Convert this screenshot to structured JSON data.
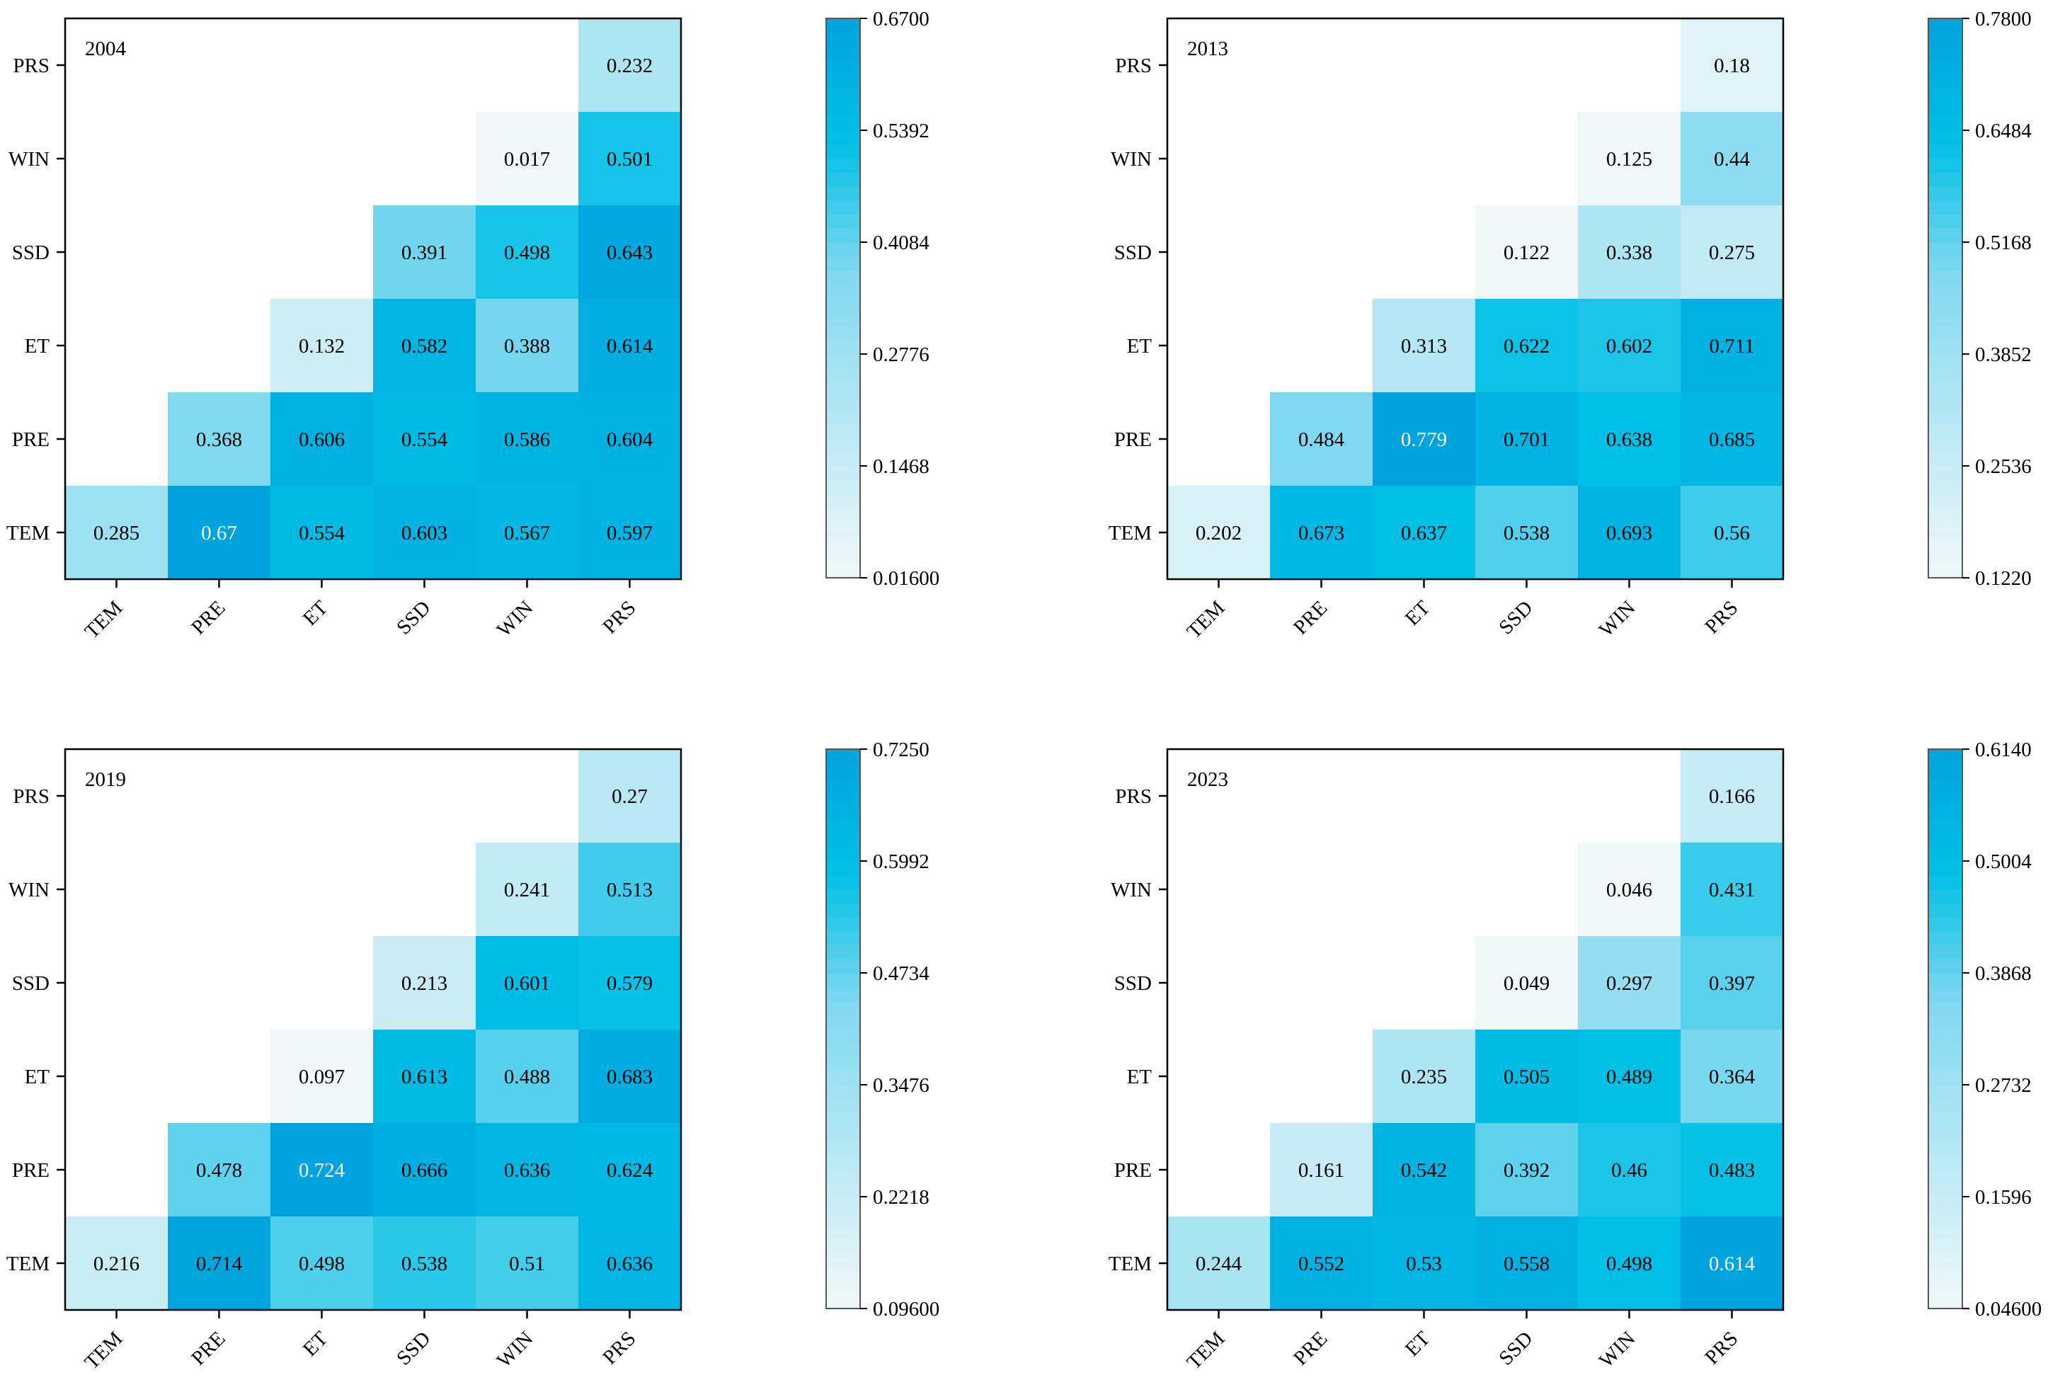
{
  "figure": {
    "description": "Four lower-triangular interaction heatmaps"
  },
  "colors": {
    "low": "#f1f8f8",
    "mid": "#00c0e6",
    "high": "#00a3dd",
    "axis": "#000000",
    "light_text": "#ffffff"
  },
  "chart_data": [
    {
      "type": "heatmap",
      "title": "2004",
      "rows": [
        "PRS",
        "WIN",
        "SSD",
        "ET",
        "PRE",
        "TEM"
      ],
      "columns": [
        "TEM",
        "PRE",
        "ET",
        "SSD",
        "WIN",
        "PRS"
      ],
      "values": [
        [
          null,
          null,
          null,
          null,
          null,
          0.232
        ],
        [
          null,
          null,
          null,
          null,
          0.017,
          0.501
        ],
        [
          null,
          null,
          null,
          0.391,
          0.498,
          0.643
        ],
        [
          null,
          null,
          0.132,
          0.582,
          0.388,
          0.614
        ],
        [
          null,
          0.368,
          0.606,
          0.554,
          0.586,
          0.604
        ],
        [
          0.285,
          0.67,
          0.554,
          0.603,
          0.567,
          0.597
        ]
      ],
      "labels": [
        [
          null,
          null,
          null,
          null,
          null,
          "0.232"
        ],
        [
          null,
          null,
          null,
          null,
          "0.017",
          "0.501"
        ],
        [
          null,
          null,
          null,
          "0.391",
          "0.498",
          "0.643"
        ],
        [
          null,
          null,
          "0.132",
          "0.582",
          "0.388",
          "0.614"
        ],
        [
          null,
          "0.368",
          "0.606",
          "0.554",
          "0.586",
          "0.604"
        ],
        [
          "0.285",
          "0.67",
          "0.554",
          "0.603",
          "0.567",
          "0.597"
        ]
      ],
      "colorbar": {
        "min": 0.016,
        "max": 0.67,
        "ticks": [
          "0.01600",
          "0.1468",
          "0.2776",
          "0.4084",
          "0.5392",
          "0.6700"
        ]
      }
    },
    {
      "type": "heatmap",
      "title": "2013",
      "rows": [
        "PRS",
        "WIN",
        "SSD",
        "ET",
        "PRE",
        "TEM"
      ],
      "columns": [
        "TEM",
        "PRE",
        "ET",
        "SSD",
        "WIN",
        "PRS"
      ],
      "values": [
        [
          null,
          null,
          null,
          null,
          null,
          0.18
        ],
        [
          null,
          null,
          null,
          null,
          0.125,
          0.44
        ],
        [
          null,
          null,
          null,
          0.122,
          0.338,
          0.275
        ],
        [
          null,
          null,
          0.313,
          0.622,
          0.602,
          0.711
        ],
        [
          null,
          0.484,
          0.779,
          0.701,
          0.638,
          0.685
        ],
        [
          0.202,
          0.673,
          0.637,
          0.538,
          0.693,
          0.56
        ]
      ],
      "labels": [
        [
          null,
          null,
          null,
          null,
          null,
          "0.18"
        ],
        [
          null,
          null,
          null,
          null,
          "0.125",
          "0.44"
        ],
        [
          null,
          null,
          null,
          "0.122",
          "0.338",
          "0.275"
        ],
        [
          null,
          null,
          "0.313",
          "0.622",
          "0.602",
          "0.711"
        ],
        [
          null,
          "0.484",
          "0.779",
          "0.701",
          "0.638",
          "0.685"
        ],
        [
          "0.202",
          "0.673",
          "0.637",
          "0.538",
          "0.693",
          "0.56"
        ]
      ],
      "colorbar": {
        "min": 0.122,
        "max": 0.78,
        "ticks": [
          "0.1220",
          "0.2536",
          "0.3852",
          "0.5168",
          "0.6484",
          "0.7800"
        ]
      }
    },
    {
      "type": "heatmap",
      "title": "2019",
      "rows": [
        "PRS",
        "WIN",
        "SSD",
        "ET",
        "PRE",
        "TEM"
      ],
      "columns": [
        "TEM",
        "PRE",
        "ET",
        "SSD",
        "WIN",
        "PRS"
      ],
      "values": [
        [
          null,
          null,
          null,
          null,
          null,
          0.27
        ],
        [
          null,
          null,
          null,
          null,
          0.241,
          0.513
        ],
        [
          null,
          null,
          null,
          0.213,
          0.601,
          0.579
        ],
        [
          null,
          null,
          0.097,
          0.613,
          0.488,
          0.683
        ],
        [
          null,
          0.478,
          0.724,
          0.666,
          0.636,
          0.624
        ],
        [
          0.216,
          0.714,
          0.498,
          0.538,
          0.51,
          0.636
        ]
      ],
      "labels": [
        [
          null,
          null,
          null,
          null,
          null,
          "0.27"
        ],
        [
          null,
          null,
          null,
          null,
          "0.241",
          "0.513"
        ],
        [
          null,
          null,
          null,
          "0.213",
          "0.601",
          "0.579"
        ],
        [
          null,
          null,
          "0.097",
          "0.613",
          "0.488",
          "0.683"
        ],
        [
          null,
          "0.478",
          "0.724",
          "0.666",
          "0.636",
          "0.624"
        ],
        [
          "0.216",
          "0.714",
          "0.498",
          "0.538",
          "0.51",
          "0.636"
        ]
      ],
      "colorbar": {
        "min": 0.096,
        "max": 0.725,
        "ticks": [
          "0.09600",
          "0.2218",
          "0.3476",
          "0.4734",
          "0.5992",
          "0.7250"
        ]
      }
    },
    {
      "type": "heatmap",
      "title": "2023",
      "rows": [
        "PRS",
        "WIN",
        "SSD",
        "ET",
        "PRE",
        "TEM"
      ],
      "columns": [
        "TEM",
        "PRE",
        "ET",
        "SSD",
        "WIN",
        "PRS"
      ],
      "values": [
        [
          null,
          null,
          null,
          null,
          null,
          0.166
        ],
        [
          null,
          null,
          null,
          null,
          0.046,
          0.431
        ],
        [
          null,
          null,
          null,
          0.049,
          0.297,
          0.397
        ],
        [
          null,
          null,
          0.235,
          0.505,
          0.489,
          0.364
        ],
        [
          null,
          0.161,
          0.542,
          0.392,
          0.46,
          0.483
        ],
        [
          0.244,
          0.552,
          0.53,
          0.558,
          0.498,
          0.614
        ]
      ],
      "labels": [
        [
          null,
          null,
          null,
          null,
          null,
          "0.166"
        ],
        [
          null,
          null,
          null,
          null,
          "0.046",
          "0.431"
        ],
        [
          null,
          null,
          null,
          "0.049",
          "0.297",
          "0.397"
        ],
        [
          null,
          null,
          "0.235",
          "0.505",
          "0.489",
          "0.364"
        ],
        [
          null,
          "0.161",
          "0.542",
          "0.392",
          "0.46",
          "0.483"
        ],
        [
          "0.244",
          "0.552",
          "0.53",
          "0.558",
          "0.498",
          "0.614"
        ]
      ],
      "colorbar": {
        "min": 0.046,
        "max": 0.614,
        "ticks": [
          "0.04600",
          "0.1596",
          "0.2732",
          "0.3868",
          "0.5004",
          "0.6140"
        ]
      }
    }
  ]
}
